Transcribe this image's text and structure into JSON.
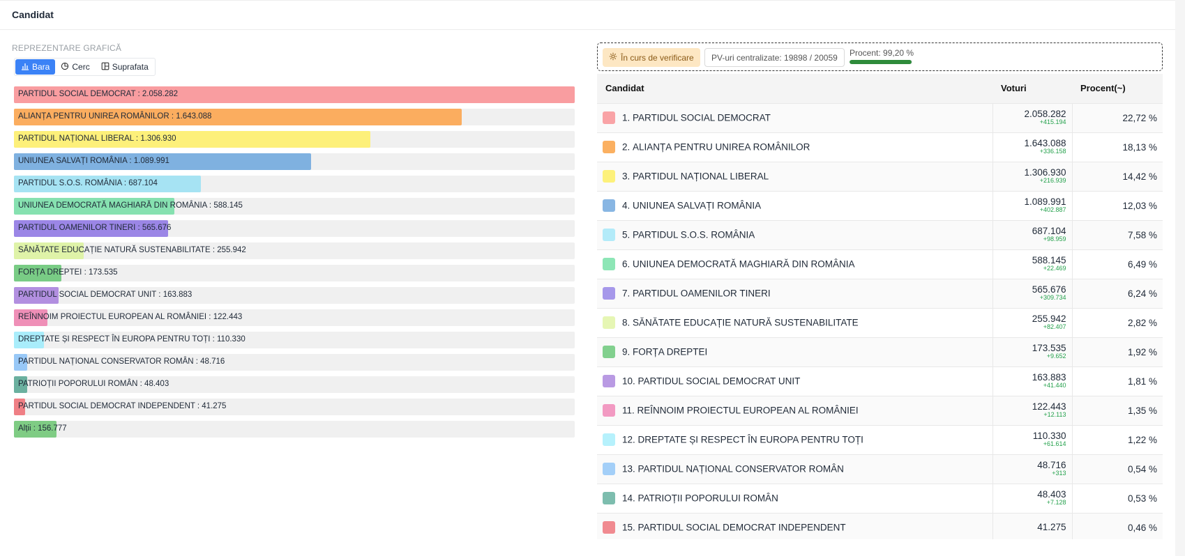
{
  "header": {
    "title": "Candidat"
  },
  "graph": {
    "section_label": "REPREZENTARE GRAFICĂ",
    "toggle": [
      {
        "label": "Bara",
        "icon": "bar-chart-icon",
        "active": true
      },
      {
        "label": "Cerc",
        "icon": "pie-chart-icon",
        "active": false
      },
      {
        "label": "Suprafata",
        "icon": "treemap-icon",
        "active": false
      }
    ]
  },
  "status": {
    "verification": "În curs de verificare",
    "pv": "PV-uri centralizate: 19898 / 20059",
    "procent": "Procent: 99,20 %",
    "procent_value": 0.992,
    "procent_color": "#2e8b3a"
  },
  "table": {
    "headers": {
      "candidate": "Candidat",
      "votes": "Voturi",
      "percent": "Procent(~)"
    }
  },
  "chart_data": {
    "type": "bar",
    "orientation": "horizontal",
    "categories": [
      "PARTIDUL SOCIAL DEMOCRAT",
      "ALIANȚA PENTRU UNIREA ROMÂNILOR",
      "PARTIDUL NAȚIONAL LIBERAL",
      "UNIUNEA SALVAȚI ROMÂNIA",
      "PARTIDUL S.O.S. ROMÂNIA",
      "UNIUNEA DEMOCRATĂ MAGHIARĂ DIN ROMÂNIA",
      "PARTIDUL OAMENILOR TINERI",
      "SĂNĂTATE EDUCAȚIE NATURĂ SUSTENABILITATE",
      "FORȚA DREPTEI",
      "PARTIDUL SOCIAL DEMOCRAT UNIT",
      "REÎNNOIM PROIECTUL EUROPEAN AL ROMÂNIEI",
      "DREPTATE ȘI RESPECT ÎN EUROPA PENTRU TOȚI",
      "PARTIDUL NAȚIONAL CONSERVATOR ROMÂN",
      "PATRIOȚII POPORULUI ROMÂN",
      "PARTIDUL SOCIAL DEMOCRAT INDEPENDENT",
      "Alții"
    ],
    "values": [
      2058282,
      1643088,
      1306930,
      1089991,
      687104,
      588145,
      565676,
      255942,
      173535,
      163883,
      122443,
      110330,
      48716,
      48403,
      41275,
      156777
    ],
    "value_labels": [
      "2.058.282",
      "1.643.088",
      "1.306.930",
      "1.089.991",
      "687.104",
      "588.145",
      "565.676",
      "255.942",
      "173.535",
      "163.883",
      "122.443",
      "110.330",
      "48.716",
      "48.403",
      "41.275",
      "156.777"
    ],
    "colors": [
      "#f99da0",
      "#fbad5f",
      "#fdf07a",
      "#7fb1e0",
      "#a6e3f3",
      "#86e1b0",
      "#9b86e6",
      "#dff3a8",
      "#79cc85",
      "#b28fe0",
      "#ef8fb7",
      "#a9edfb",
      "#98c8f7",
      "#6bb09f",
      "#ef7f85",
      "#7fcc84"
    ],
    "xlim": [
      0,
      2058282
    ]
  },
  "rows": [
    {
      "idx": "1.",
      "name": "PARTIDUL SOCIAL DEMOCRAT",
      "votes": "2.058.282",
      "delta": "+415.194",
      "pct": "22,72 %",
      "color": "#f9a3a6"
    },
    {
      "idx": "2.",
      "name": "ALIANȚA PENTRU UNIREA ROMÂNILOR",
      "votes": "1.643.088",
      "delta": "+336.158",
      "pct": "18,13 %",
      "color": "#fbb061"
    },
    {
      "idx": "3.",
      "name": "PARTIDUL NAȚIONAL LIBERAL",
      "votes": "1.306.930",
      "delta": "+216.939",
      "pct": "14,42 %",
      "color": "#fdf17b"
    },
    {
      "idx": "4.",
      "name": "UNIUNEA SALVAȚI ROMÂNIA",
      "votes": "1.089.991",
      "delta": "+402.887",
      "pct": "12,03 %",
      "color": "#88b6e3"
    },
    {
      "idx": "5.",
      "name": "PARTIDUL S.O.S. ROMÂNIA",
      "votes": "687.104",
      "delta": "+98.959",
      "pct": "7,58 %",
      "color": "#b3ebf9"
    },
    {
      "idx": "6.",
      "name": "UNIUNEA DEMOCRATĂ MAGHIARĂ DIN ROMÂNIA",
      "votes": "588.145",
      "delta": "+22.469",
      "pct": "6,49 %",
      "color": "#8de6b6"
    },
    {
      "idx": "7.",
      "name": "PARTIDUL OAMENILOR TINERI",
      "votes": "565.676",
      "delta": "+309.734",
      "pct": "6,24 %",
      "color": "#a698ea"
    },
    {
      "idx": "8.",
      "name": "SĂNĂTATE EDUCAȚIE NATURĂ SUSTENABILITATE",
      "votes": "255.942",
      "delta": "+82.407",
      "pct": "2,82 %",
      "color": "#e6f6b4"
    },
    {
      "idx": "9.",
      "name": "FORȚA DREPTEI",
      "votes": "173.535",
      "delta": "+9.652",
      "pct": "1,92 %",
      "color": "#82d08e"
    },
    {
      "idx": "10.",
      "name": "PARTIDUL SOCIAL DEMOCRAT UNIT",
      "votes": "163.883",
      "delta": "+41.440",
      "pct": "1,81 %",
      "color": "#b99ae3"
    },
    {
      "idx": "11.",
      "name": "REÎNNOIM PROIECTUL EUROPEAN AL ROMÂNIEI",
      "votes": "122.443",
      "delta": "+12.113",
      "pct": "1,35 %",
      "color": "#f29ac2"
    },
    {
      "idx": "12.",
      "name": "DREPTATE ȘI RESPECT ÎN EUROPA PENTRU TOȚI",
      "votes": "110.330",
      "delta": "+61.614",
      "pct": "1,22 %",
      "color": "#b6f1fc"
    },
    {
      "idx": "13.",
      "name": "PARTIDUL NAȚIONAL CONSERVATOR ROMÂN",
      "votes": "48.716",
      "delta": "+313",
      "pct": "0,54 %",
      "color": "#a3cff8"
    },
    {
      "idx": "14.",
      "name": "PATRIOȚII POPORULUI ROMÂN",
      "votes": "48.403",
      "delta": "+7.128",
      "pct": "0,53 %",
      "color": "#7dbdae"
    },
    {
      "idx": "15.",
      "name": "PARTIDUL SOCIAL DEMOCRAT INDEPENDENT",
      "votes": "41.275",
      "delta": "",
      "pct": "0,46 %",
      "color": "#f08a90"
    }
  ]
}
